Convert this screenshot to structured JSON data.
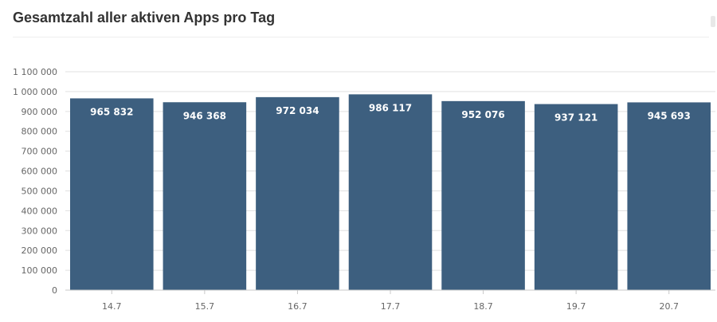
{
  "chart_data": {
    "type": "bar",
    "title": "Gesamtzahl aller aktiven Apps pro Tag",
    "categories": [
      "14.7",
      "15.7",
      "16.7",
      "17.7",
      "18.7",
      "19.7",
      "20.7"
    ],
    "values": [
      965832,
      946368,
      972034,
      986117,
      952076,
      937121,
      945693
    ],
    "value_labels": [
      "965 832",
      "946 368",
      "972 034",
      "986 117",
      "952 076",
      "937 121",
      "945 693"
    ],
    "ylim": [
      0,
      1100000
    ],
    "yticks": [
      0,
      100000,
      200000,
      300000,
      400000,
      500000,
      600000,
      700000,
      800000,
      900000,
      1000000,
      1100000
    ],
    "ytick_labels": [
      "0",
      "100 000",
      "200 000",
      "300 000",
      "400 000",
      "500 000",
      "600 000",
      "700 000",
      "800 000",
      "900 000",
      "1 000 000",
      "1 100 000"
    ],
    "grid": true,
    "bar_color": "#3d5f7f",
    "grid_color": "#e0e0e0",
    "axis_color": "#c8c8c8"
  }
}
